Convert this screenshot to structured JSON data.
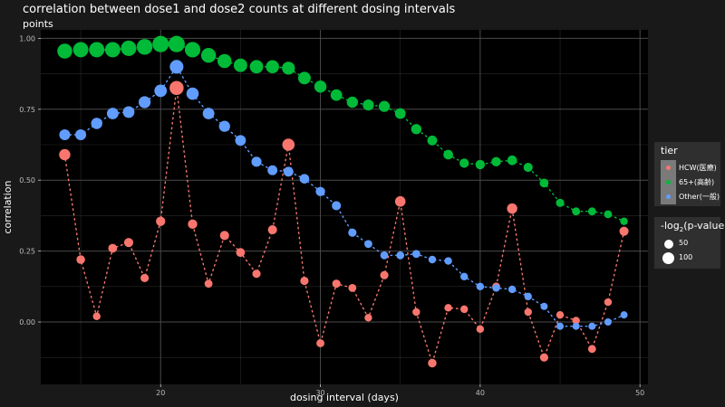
{
  "title": "correlation between dose1 and dose2 counts at different dosing intervals",
  "subtitle": "points",
  "legend": {
    "tier_title": "tier",
    "items": [
      {
        "label": "HCW(医療)",
        "color": "#f8766d"
      },
      {
        "label": "65+(高齢)",
        "color": "#00ba38"
      },
      {
        "label": "Other(一般)",
        "color": "#619cff"
      }
    ],
    "size_title": "-log",
    "size_title_sub": "2",
    "size_title_end": "(p-value)",
    "sizes": [
      {
        "label": "50",
        "value": 50
      },
      {
        "label": "100",
        "value": 100
      }
    ]
  },
  "chart_data": {
    "type": "scatter",
    "title": "correlation between dose1 and dose2 counts at different dosing intervals",
    "subtitle": "points",
    "xlabel": "dosing interval (days)",
    "ylabel": "correlation",
    "xlim": [
      12.5,
      50.5
    ],
    "ylim": [
      -0.22,
      1.03
    ],
    "x_ticks": [
      20,
      30,
      40,
      50
    ],
    "y_ticks": [
      0.0,
      0.25,
      0.5,
      0.75,
      1.0
    ],
    "y_tick_labels": [
      "0.00",
      "0.25",
      "0.50",
      "0.75",
      "1.00"
    ],
    "grid": true,
    "legend_position": "right",
    "x": [
      14,
      15,
      16,
      17,
      18,
      19,
      20,
      21,
      22,
      23,
      24,
      25,
      26,
      27,
      28,
      29,
      30,
      31,
      32,
      33,
      34,
      35,
      36,
      37,
      38,
      39,
      40,
      41,
      42,
      43,
      44,
      45,
      46,
      47,
      48,
      49
    ],
    "series": [
      {
        "name": "HCW(医療)",
        "color": "#f8766d",
        "values": [
          0.59,
          0.22,
          0.02,
          0.26,
          0.28,
          0.155,
          0.355,
          0.825,
          0.345,
          0.135,
          0.305,
          0.245,
          0.17,
          0.325,
          0.625,
          0.145,
          -0.075,
          0.135,
          0.12,
          0.015,
          0.165,
          0.425,
          0.035,
          -0.145,
          0.05,
          0.045,
          -0.025,
          0.125,
          0.4,
          0.035,
          -0.125,
          0.025,
          0.005,
          -0.095,
          0.07,
          0.32
        ],
        "size": [
          20,
          8,
          5,
          9,
          10,
          7,
          11,
          38,
          11,
          6,
          10,
          9,
          7,
          10,
          26,
          7,
          6,
          7,
          6,
          5,
          7,
          16,
          5,
          8,
          5,
          5,
          5,
          6,
          15,
          5,
          7,
          5,
          5,
          6,
          5,
          10
        ]
      },
      {
        "name": "65+(高齢)",
        "color": "#00ba38",
        "values": [
          0.955,
          0.96,
          0.96,
          0.96,
          0.965,
          0.97,
          0.98,
          0.98,
          0.96,
          0.94,
          0.92,
          0.905,
          0.9,
          0.9,
          0.895,
          0.86,
          0.83,
          0.8,
          0.775,
          0.765,
          0.76,
          0.735,
          0.68,
          0.64,
          0.59,
          0.56,
          0.555,
          0.565,
          0.57,
          0.545,
          0.49,
          0.42,
          0.39,
          0.39,
          0.38,
          0.355
        ],
        "size": [
          45,
          48,
          48,
          48,
          50,
          52,
          58,
          58,
          50,
          44,
          38,
          34,
          33,
          32,
          30,
          28,
          25,
          22,
          20,
          19,
          19,
          17,
          15,
          13,
          12,
          11,
          11,
          11,
          12,
          10,
          9,
          7,
          6,
          6,
          6,
          5
        ]
      },
      {
        "name": "Other(一般)",
        "color": "#619cff",
        "values": [
          0.66,
          0.66,
          0.7,
          0.735,
          0.74,
          0.775,
          0.815,
          0.9,
          0.805,
          0.735,
          0.69,
          0.64,
          0.565,
          0.535,
          0.53,
          0.505,
          0.46,
          0.41,
          0.315,
          0.275,
          0.235,
          0.235,
          0.24,
          0.22,
          0.215,
          0.16,
          0.125,
          0.12,
          0.115,
          0.09,
          0.055,
          -0.015,
          -0.015,
          -0.015,
          0.0,
          0.025
        ],
        "size": [
          18,
          18,
          20,
          22,
          22,
          24,
          27,
          35,
          26,
          22,
          19,
          17,
          14,
          13,
          13,
          12,
          11,
          10,
          7,
          6,
          6,
          6,
          6,
          5,
          5,
          5,
          5,
          5,
          5,
          5,
          4,
          4,
          4,
          4,
          4,
          4
        ]
      }
    ]
  }
}
